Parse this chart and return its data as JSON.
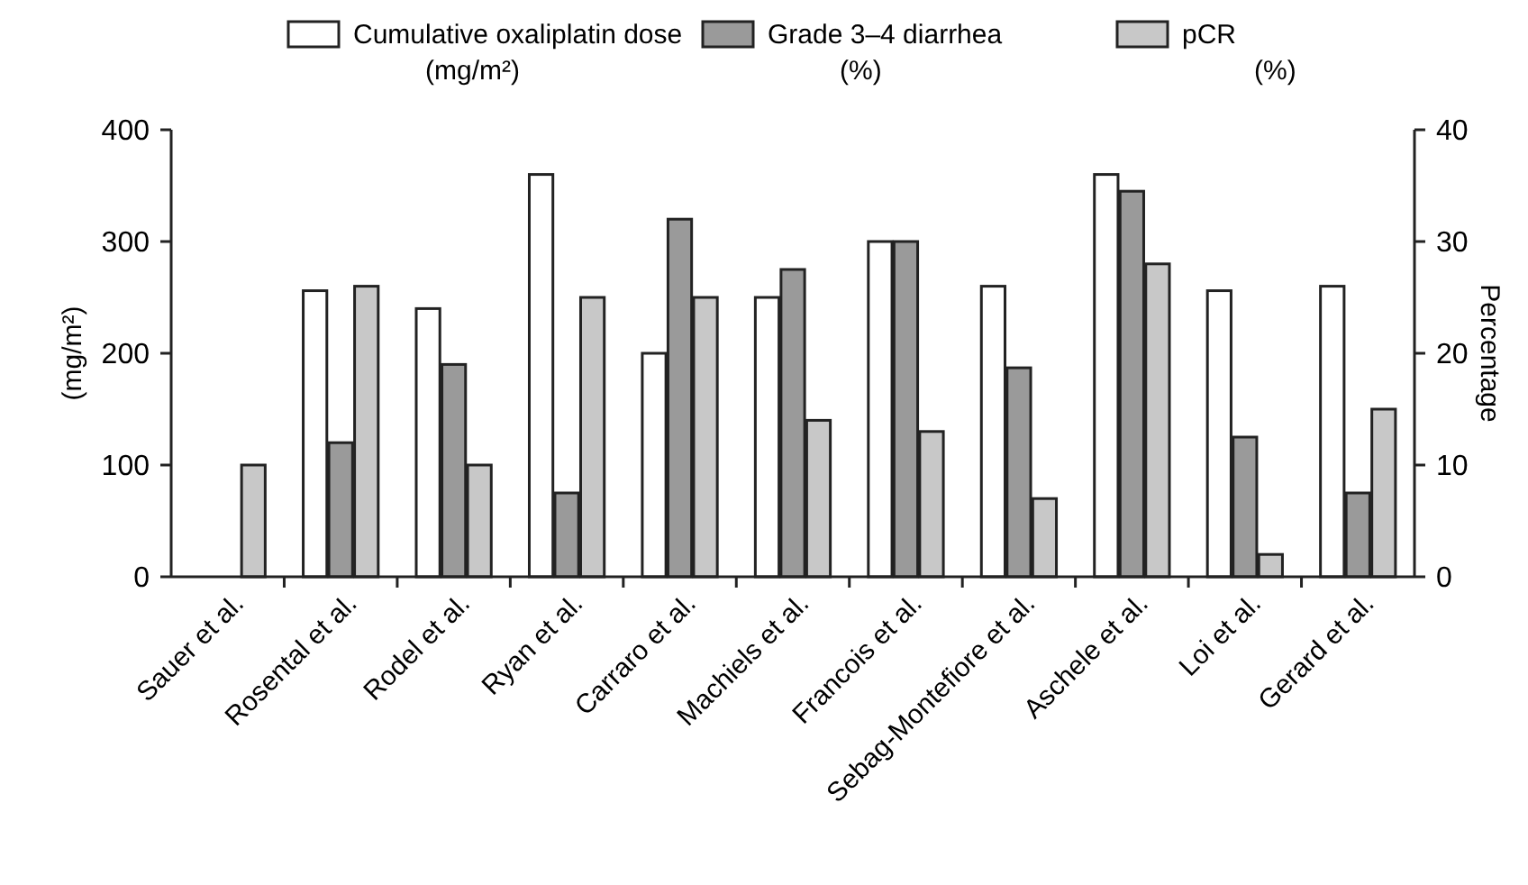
{
  "chart_data": {
    "type": "bar",
    "ylabel": "(mg/m²)",
    "y2label": "Percentage",
    "categories": [
      "Sauer et al.",
      "Rosental et al.",
      "Rodel et al.",
      "Ryan et al.",
      "Carraro et al.",
      "Machiels et al.",
      "Francois et al.",
      "Sebag-Montefiore et al.",
      "Aschele et al.",
      "Loi et al.",
      "Gerard et al."
    ],
    "series": [
      {
        "name": "Cumulative oxaliplatin dose\n(mg/m²)",
        "color": "#ffffff",
        "values": [
          null,
          256,
          240,
          360,
          200,
          250,
          300,
          260,
          360,
          256,
          260
        ]
      },
      {
        "name": "Grade 3–4 diarrhea\n(%)",
        "color": "#9a9a9a",
        "axis": "y2",
        "values": [
          null,
          12,
          19,
          7.5,
          32,
          27.5,
          30,
          18.7,
          34.5,
          12.5,
          7.5
        ]
      },
      {
        "name": "pCR\n(%)",
        "color": "#c8c8c8",
        "axis": "y2",
        "values": [
          10,
          26,
          10,
          25,
          25,
          14,
          13,
          7,
          28,
          2,
          15
        ]
      }
    ],
    "ylim": [
      0,
      400
    ],
    "yticks": [
      0,
      100,
      200,
      300,
      400
    ],
    "y2lim": [
      0,
      40
    ],
    "y2ticks": [
      0,
      10,
      20,
      30,
      40
    ],
    "legend": "top"
  }
}
